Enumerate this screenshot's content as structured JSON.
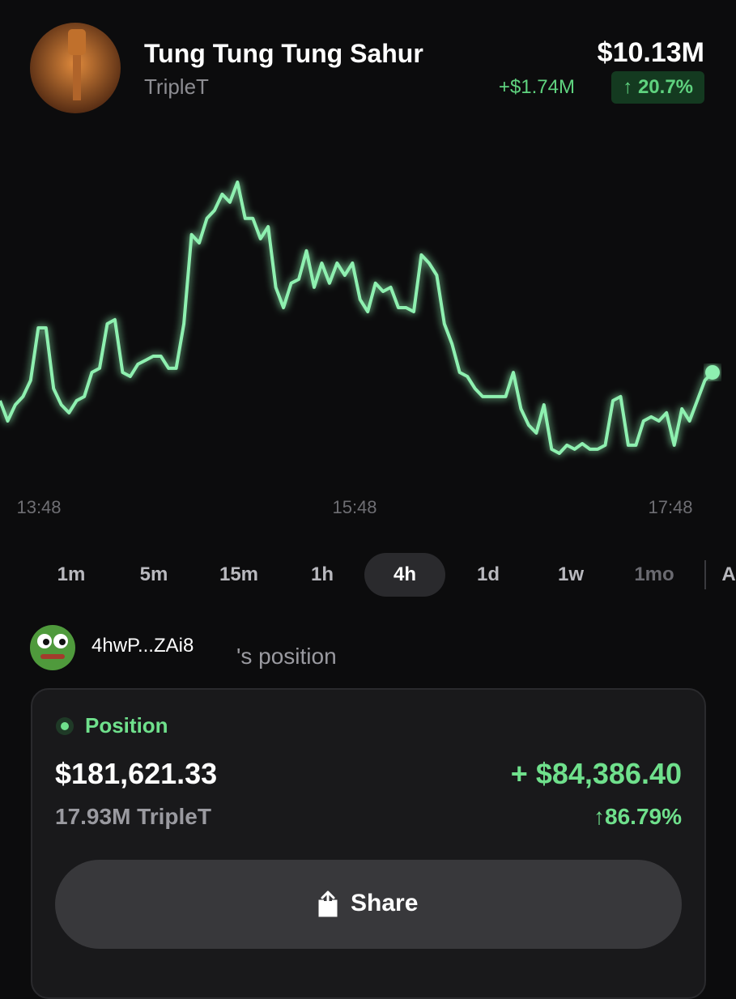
{
  "header": {
    "title": "Tung Tung Tung Sahur",
    "ticker": "TripleT",
    "market_cap": "$10.13M",
    "change": "+$1.74M",
    "change_pct": "↑ 20.7%"
  },
  "chart_data": {
    "type": "line",
    "color": "#8ef0b0",
    "x_labels": [
      "13:48",
      "15:48",
      "17:48"
    ],
    "values": [
      8.61,
      7.52,
      8.39,
      8.83,
      9.7,
      12.52,
      12.52,
      9.26,
      8.39,
      7.96,
      8.61,
      8.83,
      10.13,
      10.35,
      12.74,
      12.96,
      10.13,
      9.91,
      10.57,
      10.78,
      11.0,
      11.0,
      10.35,
      10.35,
      12.74,
      17.53,
      17.09,
      18.4,
      18.83,
      19.7,
      19.27,
      20.35,
      18.4,
      18.4,
      17.31,
      17.96,
      14.7,
      13.61,
      14.92,
      15.13,
      16.66,
      14.7,
      16.0,
      14.92,
      16.0,
      15.35,
      16.0,
      14.05,
      13.39,
      14.92,
      14.48,
      14.7,
      13.61,
      13.61,
      13.39,
      16.44,
      16.0,
      15.35,
      12.74,
      11.65,
      10.13,
      9.91,
      9.26,
      8.83,
      8.83,
      8.83,
      8.83,
      10.13,
      8.17,
      7.3,
      6.87,
      8.39,
      6.0,
      5.78,
      6.22,
      6.0,
      6.3,
      6.0,
      6.0,
      6.22,
      8.61,
      8.83,
      6.22,
      6.22,
      7.52,
      7.74,
      7.52,
      7.96,
      6.22,
      8.17,
      7.52,
      8.61,
      9.7,
      10.13
    ]
  },
  "timeframes": {
    "options": [
      "1m",
      "5m",
      "15m",
      "1h",
      "4h",
      "1d",
      "1w",
      "1mo",
      "A"
    ],
    "selected": "4h"
  },
  "position": {
    "wallet": "4hwP...ZAi8",
    "suffix": "'s position",
    "label": "Position",
    "value": "$181,621.33",
    "amount": "17.93M TripleT",
    "pnl": "+ $84,386.40",
    "pnl_pct": "↑86.79%",
    "button": "Share"
  }
}
